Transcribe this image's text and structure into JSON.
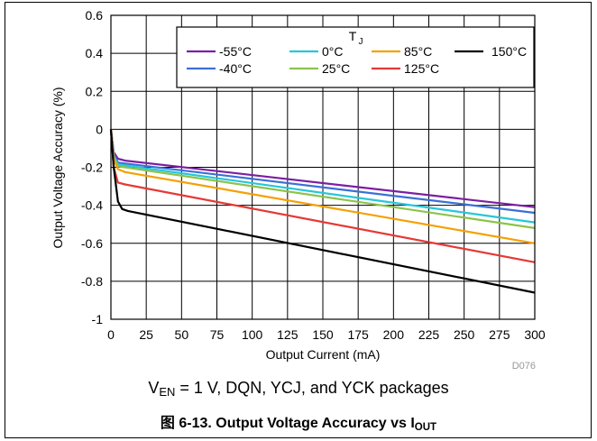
{
  "chart_data": {
    "type": "line",
    "xlabel": "Output Current (mA)",
    "ylabel": "Output Voltage Accuracy (%)",
    "xlim": [
      0,
      300
    ],
    "ylim": [
      -1,
      0.6
    ],
    "xticks": [
      "0",
      "25",
      "50",
      "75",
      "100",
      "125",
      "150",
      "175",
      "200",
      "225",
      "250",
      "275",
      "300"
    ],
    "yticks": [
      "0.6",
      "0.4",
      "0.2",
      "0",
      "-0.2",
      "-0.4",
      "-0.6",
      "-0.8",
      "-1"
    ],
    "grid": true,
    "legend_title": "T",
    "legend_title_sub": "J",
    "legend_placement": "top-right",
    "series": [
      {
        "name": "-55°C",
        "color": "#7b1fa2",
        "x": [
          0,
          2,
          5,
          10,
          300
        ],
        "y": [
          0.0,
          -0.12,
          -0.155,
          -0.165,
          -0.41
        ]
      },
      {
        "name": "-40°C",
        "color": "#3b6fd6",
        "x": [
          0,
          2,
          5,
          10,
          300
        ],
        "y": [
          0.0,
          -0.13,
          -0.175,
          -0.18,
          -0.44
        ]
      },
      {
        "name": "0°C",
        "color": "#26c6da",
        "x": [
          0,
          2,
          5,
          10,
          300
        ],
        "y": [
          0.0,
          -0.14,
          -0.185,
          -0.19,
          -0.49
        ]
      },
      {
        "name": "25°C",
        "color": "#8bc34a",
        "x": [
          0,
          2,
          5,
          10,
          300
        ],
        "y": [
          0.0,
          -0.15,
          -0.195,
          -0.2,
          -0.52
        ]
      },
      {
        "name": "85°C",
        "color": "#f5a000",
        "x": [
          0,
          2,
          5,
          10,
          300
        ],
        "y": [
          0.0,
          -0.16,
          -0.21,
          -0.225,
          -0.6
        ]
      },
      {
        "name": "125°C",
        "color": "#e53935",
        "x": [
          0,
          2,
          5,
          10,
          300
        ],
        "y": [
          0.0,
          -0.2,
          -0.28,
          -0.29,
          -0.7
        ]
      },
      {
        "name": "150°C",
        "color": "#000000",
        "x": [
          0,
          2,
          5,
          8,
          12,
          300
        ],
        "y": [
          0.0,
          -0.2,
          -0.38,
          -0.42,
          -0.43,
          -0.86
        ]
      }
    ],
    "watermark": "D076"
  },
  "caption": {
    "cond_pre": "V",
    "cond_sub": "EN",
    "cond_post": " = 1 V, DQN, YCJ, and YCK packages",
    "fig_pre": "图 6-13. Output Voltage Accuracy vs I",
    "fig_sub": "OUT"
  }
}
